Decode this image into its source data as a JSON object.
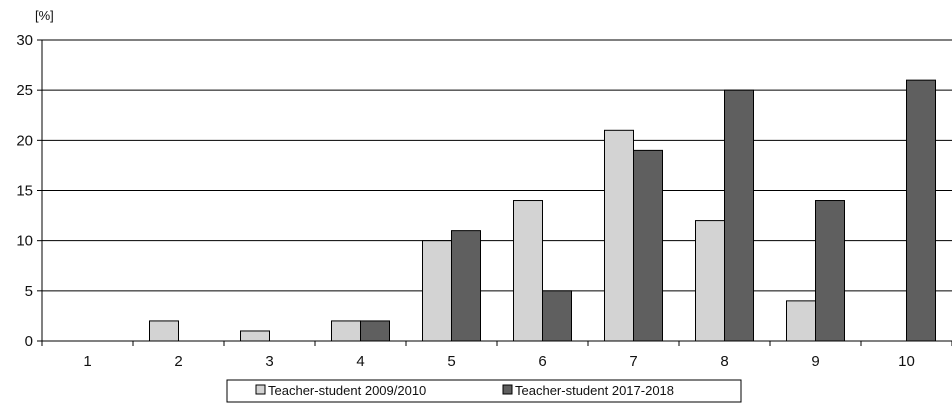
{
  "chart_data": {
    "type": "bar",
    "title": "",
    "xlabel": "",
    "ylabel": "[%]",
    "categories": [
      "1",
      "2",
      "3",
      "4",
      "5",
      "6",
      "7",
      "8",
      "9",
      "10"
    ],
    "series": [
      {
        "name": "Teacher-student 2009/2010",
        "values": [
          0,
          2,
          1,
          2,
          10,
          14,
          21,
          12,
          4,
          0
        ],
        "color": "#d3d3d3"
      },
      {
        "name": "Teacher-student 2017-2018",
        "values": [
          0,
          0,
          0,
          2,
          11,
          5,
          19,
          25,
          14,
          26
        ],
        "color": "#5f5f5f"
      }
    ],
    "ylim": [
      0,
      30
    ],
    "yticks": [
      "0",
      "5",
      "10",
      "15",
      "20",
      "25",
      "30"
    ],
    "grid": true,
    "legend_position": "bottom-center"
  }
}
